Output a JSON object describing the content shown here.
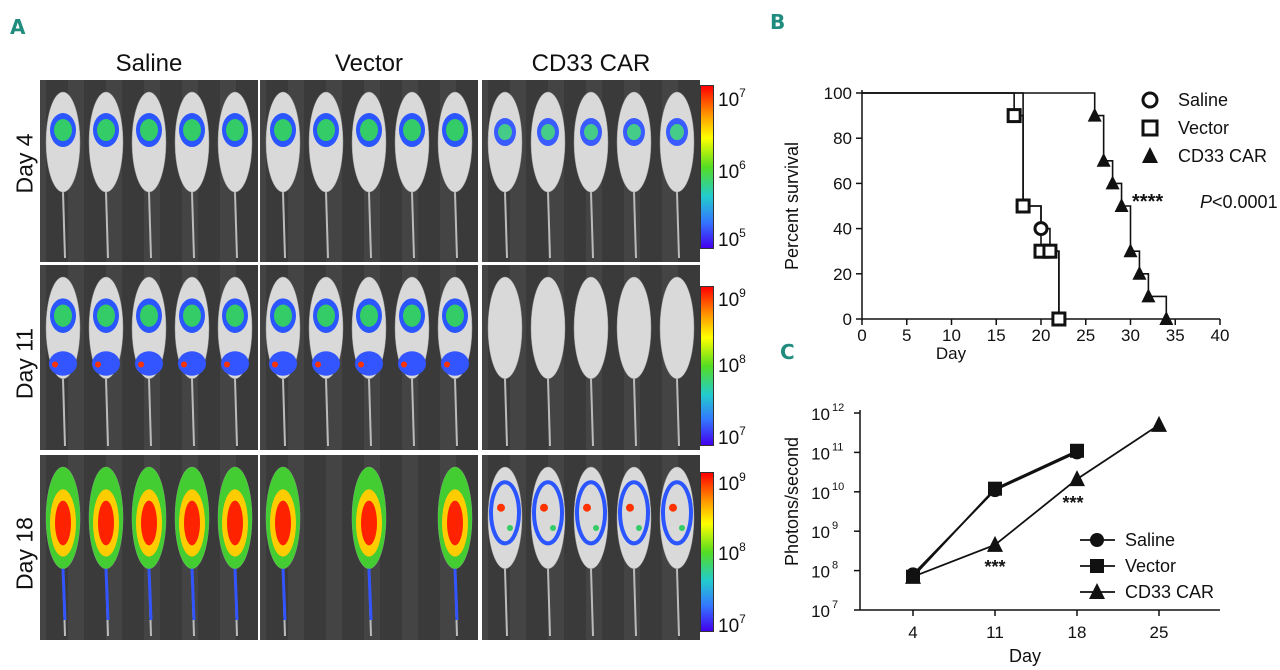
{
  "panel_a": {
    "letter": "A",
    "columns": [
      "Saline",
      "Vector",
      "CD33 CAR"
    ],
    "rows": [
      {
        "label": "Day 4",
        "cbar_max": "10",
        "cbar_max_exp": "7",
        "cbar_mid": "10",
        "cbar_mid_exp": "6",
        "cbar_min": "10",
        "cbar_min_exp": "5"
      },
      {
        "label": "Day 11",
        "cbar_max": "10",
        "cbar_max_exp": "9",
        "cbar_mid": "10",
        "cbar_mid_exp": "8",
        "cbar_min": "10",
        "cbar_min_exp": "7"
      },
      {
        "label": "Day 18",
        "cbar_max": "10",
        "cbar_max_exp": "9",
        "cbar_mid": "10",
        "cbar_mid_exp": "8",
        "cbar_min": "10",
        "cbar_min_exp": "7"
      }
    ]
  },
  "chart_data": [
    {
      "panel": "B",
      "type": "line",
      "subtype": "kaplan-meier survival",
      "xlabel": "Day",
      "ylabel": "Percent survival",
      "xlim": [
        0,
        40
      ],
      "ylim": [
        0,
        100
      ],
      "xticks": [
        "0",
        "5",
        "10",
        "15",
        "20",
        "25",
        "30",
        "35",
        "40"
      ],
      "yticks": [
        "0",
        "20",
        "40",
        "60",
        "80",
        "100"
      ],
      "annotation": "****",
      "pvalue_prefix": "P",
      "pvalue_rest": "<0.0001",
      "legend": [
        "Saline",
        "Vector",
        "CD33 CAR"
      ],
      "series": [
        {
          "name": "Saline",
          "marker": "circle-open",
          "x": [
            0,
            18,
            20,
            21,
            22
          ],
          "y": [
            100,
            50,
            40,
            30,
            0
          ]
        },
        {
          "name": "Vector",
          "marker": "square-open",
          "x": [
            0,
            17,
            18,
            20,
            21,
            22
          ],
          "y": [
            100,
            90,
            50,
            30,
            30,
            0
          ]
        },
        {
          "name": "CD33 CAR",
          "marker": "triangle-filled",
          "x": [
            0,
            26,
            27,
            28,
            29,
            30,
            31,
            32,
            34
          ],
          "y": [
            100,
            90,
            70,
            60,
            50,
            30,
            20,
            10,
            0
          ]
        }
      ]
    },
    {
      "panel": "C",
      "type": "line",
      "scale": "log",
      "xlabel": "Day",
      "ylabel": "Photons/second",
      "categories": [
        "4",
        "11",
        "18",
        "25"
      ],
      "ylim_exp": [
        7,
        12
      ],
      "yticks": [
        {
          "base": "10",
          "exp": "7"
        },
        {
          "base": "10",
          "exp": "8"
        },
        {
          "base": "10",
          "exp": "9"
        },
        {
          "base": "10",
          "exp": "10"
        },
        {
          "base": "10",
          "exp": "11"
        },
        {
          "base": "10",
          "exp": "12"
        }
      ],
      "annotations": [
        "***",
        "***"
      ],
      "legend": [
        "Saline",
        "Vector",
        "CD33 CAR"
      ],
      "series": [
        {
          "name": "Saline",
          "marker": "circle-filled",
          "values": [
            80000000,
            11000000000,
            100000000000,
            null
          ]
        },
        {
          "name": "Vector",
          "marker": "square-filled",
          "values": [
            70000000,
            12000000000,
            110000000000,
            null
          ]
        },
        {
          "name": "CD33 CAR",
          "marker": "triangle-filled",
          "values": [
            70000000,
            450000000,
            21000000000,
            500000000000
          ]
        }
      ]
    }
  ]
}
